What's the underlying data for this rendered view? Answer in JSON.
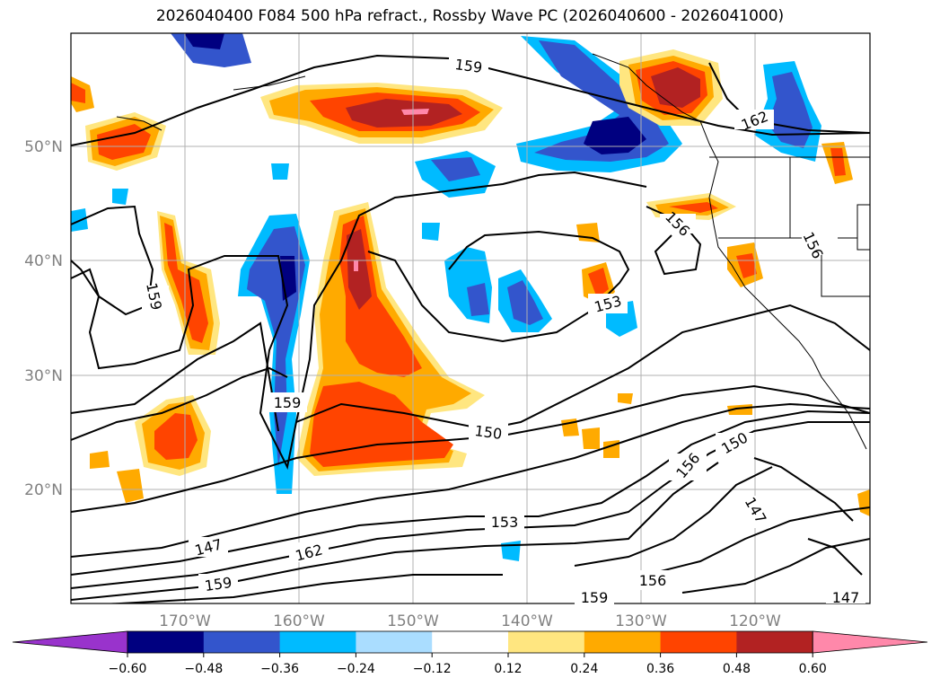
{
  "title": "2026040400 F084 500 hPa refract., Rossby Wave PC (2026040600 - 2026041000)",
  "lat_labels": [
    "50°N",
    "40°N",
    "30°N",
    "20°N"
  ],
  "lon_labels": [
    "170°W",
    "160°W",
    "150°W",
    "140°W",
    "130°W",
    "120°W"
  ],
  "contour_labels": [
    "159",
    "162",
    "156",
    "156",
    "159",
    "153",
    "159",
    "150",
    "150",
    "156",
    "147",
    "153",
    "147",
    "162",
    "159",
    "156",
    "159",
    "147"
  ],
  "colorbar": {
    "ticks": [
      "−0.60",
      "−0.48",
      "−0.36",
      "−0.24",
      "−0.12",
      "0.12",
      "0.24",
      "0.36",
      "0.48",
      "0.60"
    ],
    "colors": [
      "#9933cc",
      "#000080",
      "#3355cc",
      "#00bbff",
      "#aaddff",
      "#ffffff",
      "#ffe680",
      "#ffaa00",
      "#ff4400",
      "#b22222",
      "#ff88aa"
    ]
  },
  "map_data": {
    "region": "North Pacific / West coast of North America",
    "lat_range": [
      10,
      60
    ],
    "lon_range": [
      -180,
      -110
    ],
    "field_shaded": "500 hPa refractivity, Rossby Wave PC",
    "field_contoured": "geopotential-like contours (labels 147–162)"
  }
}
